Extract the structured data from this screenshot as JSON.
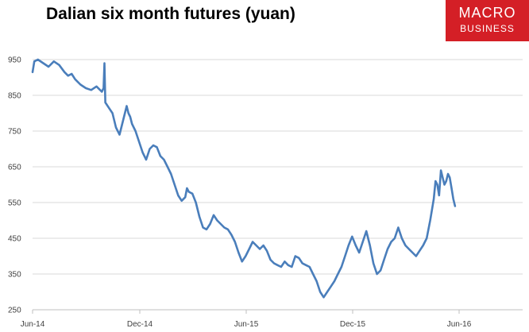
{
  "header": {
    "title": "Dalian six month futures (yuan)"
  },
  "logo": {
    "line1": "MACRO",
    "line2": "BUSINESS",
    "color": "#d41f26"
  },
  "chart_data": {
    "type": "line",
    "title": "Dalian six month futures (yuan)",
    "xlabel": "",
    "ylabel": "",
    "ylim": [
      250,
      975
    ],
    "y_ticks": [
      250,
      350,
      450,
      550,
      650,
      750,
      850,
      950
    ],
    "x_ticks": [
      "Jun-14",
      "Dec-14",
      "Jun-15",
      "Dec-15",
      "Jun-16"
    ],
    "grid": "horizontal",
    "line_color": "#4a7ebb",
    "series": [
      {
        "name": "",
        "points": [
          [
            0.0,
            915
          ],
          [
            0.1,
            945
          ],
          [
            0.3,
            950
          ],
          [
            0.6,
            940
          ],
          [
            0.9,
            930
          ],
          [
            1.2,
            945
          ],
          [
            1.5,
            935
          ],
          [
            1.8,
            915
          ],
          [
            2.0,
            905
          ],
          [
            2.2,
            910
          ],
          [
            2.4,
            895
          ],
          [
            2.7,
            880
          ],
          [
            3.0,
            870
          ],
          [
            3.3,
            865
          ],
          [
            3.6,
            875
          ],
          [
            3.9,
            860
          ],
          [
            4.0,
            870
          ],
          [
            4.05,
            940
          ],
          [
            4.1,
            830
          ],
          [
            4.3,
            815
          ],
          [
            4.5,
            800
          ],
          [
            4.6,
            780
          ],
          [
            4.7,
            760
          ],
          [
            4.9,
            740
          ],
          [
            5.1,
            780
          ],
          [
            5.3,
            820
          ],
          [
            5.4,
            800
          ],
          [
            5.5,
            790
          ],
          [
            5.6,
            770
          ],
          [
            5.8,
            750
          ],
          [
            6.0,
            720
          ],
          [
            6.2,
            690
          ],
          [
            6.4,
            670
          ],
          [
            6.6,
            700
          ],
          [
            6.8,
            710
          ],
          [
            7.0,
            705
          ],
          [
            7.2,
            680
          ],
          [
            7.4,
            670
          ],
          [
            7.6,
            650
          ],
          [
            7.8,
            630
          ],
          [
            8.0,
            600
          ],
          [
            8.2,
            570
          ],
          [
            8.4,
            555
          ],
          [
            8.6,
            565
          ],
          [
            8.7,
            590
          ],
          [
            8.8,
            580
          ],
          [
            9.0,
            575
          ],
          [
            9.2,
            550
          ],
          [
            9.4,
            510
          ],
          [
            9.6,
            480
          ],
          [
            9.8,
            475
          ],
          [
            10.0,
            490
          ],
          [
            10.2,
            515
          ],
          [
            10.4,
            500
          ],
          [
            10.6,
            490
          ],
          [
            10.8,
            480
          ],
          [
            11.0,
            475
          ],
          [
            11.2,
            460
          ],
          [
            11.4,
            440
          ],
          [
            11.6,
            410
          ],
          [
            11.8,
            385
          ],
          [
            12.0,
            400
          ],
          [
            12.2,
            420
          ],
          [
            12.4,
            440
          ],
          [
            12.6,
            430
          ],
          [
            12.8,
            420
          ],
          [
            13.0,
            430
          ],
          [
            13.2,
            415
          ],
          [
            13.4,
            390
          ],
          [
            13.6,
            380
          ],
          [
            13.8,
            375
          ],
          [
            14.0,
            370
          ],
          [
            14.2,
            385
          ],
          [
            14.4,
            375
          ],
          [
            14.6,
            370
          ],
          [
            14.8,
            400
          ],
          [
            15.0,
            395
          ],
          [
            15.2,
            380
          ],
          [
            15.4,
            375
          ],
          [
            15.6,
            370
          ],
          [
            15.8,
            350
          ],
          [
            16.0,
            330
          ],
          [
            16.2,
            300
          ],
          [
            16.4,
            285
          ],
          [
            16.6,
            300
          ],
          [
            16.8,
            315
          ],
          [
            17.0,
            330
          ],
          [
            17.2,
            350
          ],
          [
            17.4,
            370
          ],
          [
            17.6,
            400
          ],
          [
            17.8,
            430
          ],
          [
            18.0,
            455
          ],
          [
            18.2,
            430
          ],
          [
            18.4,
            410
          ],
          [
            18.6,
            440
          ],
          [
            18.8,
            470
          ],
          [
            19.0,
            430
          ],
          [
            19.2,
            380
          ],
          [
            19.4,
            350
          ],
          [
            19.6,
            360
          ],
          [
            19.8,
            390
          ],
          [
            20.0,
            420
          ],
          [
            20.2,
            440
          ],
          [
            20.4,
            450
          ],
          [
            20.6,
            480
          ],
          [
            20.8,
            450
          ],
          [
            21.0,
            430
          ],
          [
            21.2,
            420
          ],
          [
            21.4,
            410
          ],
          [
            21.6,
            400
          ],
          [
            21.8,
            415
          ],
          [
            22.0,
            430
          ],
          [
            22.2,
            450
          ],
          [
            22.4,
            500
          ],
          [
            22.6,
            560
          ],
          [
            22.7,
            610
          ],
          [
            22.8,
            600
          ],
          [
            22.9,
            570
          ],
          [
            23.0,
            640
          ],
          [
            23.1,
            620
          ],
          [
            23.2,
            600
          ],
          [
            23.3,
            610
          ],
          [
            23.4,
            630
          ],
          [
            23.5,
            620
          ],
          [
            23.6,
            590
          ],
          [
            23.7,
            560
          ],
          [
            23.8,
            540
          ]
        ]
      }
    ]
  }
}
